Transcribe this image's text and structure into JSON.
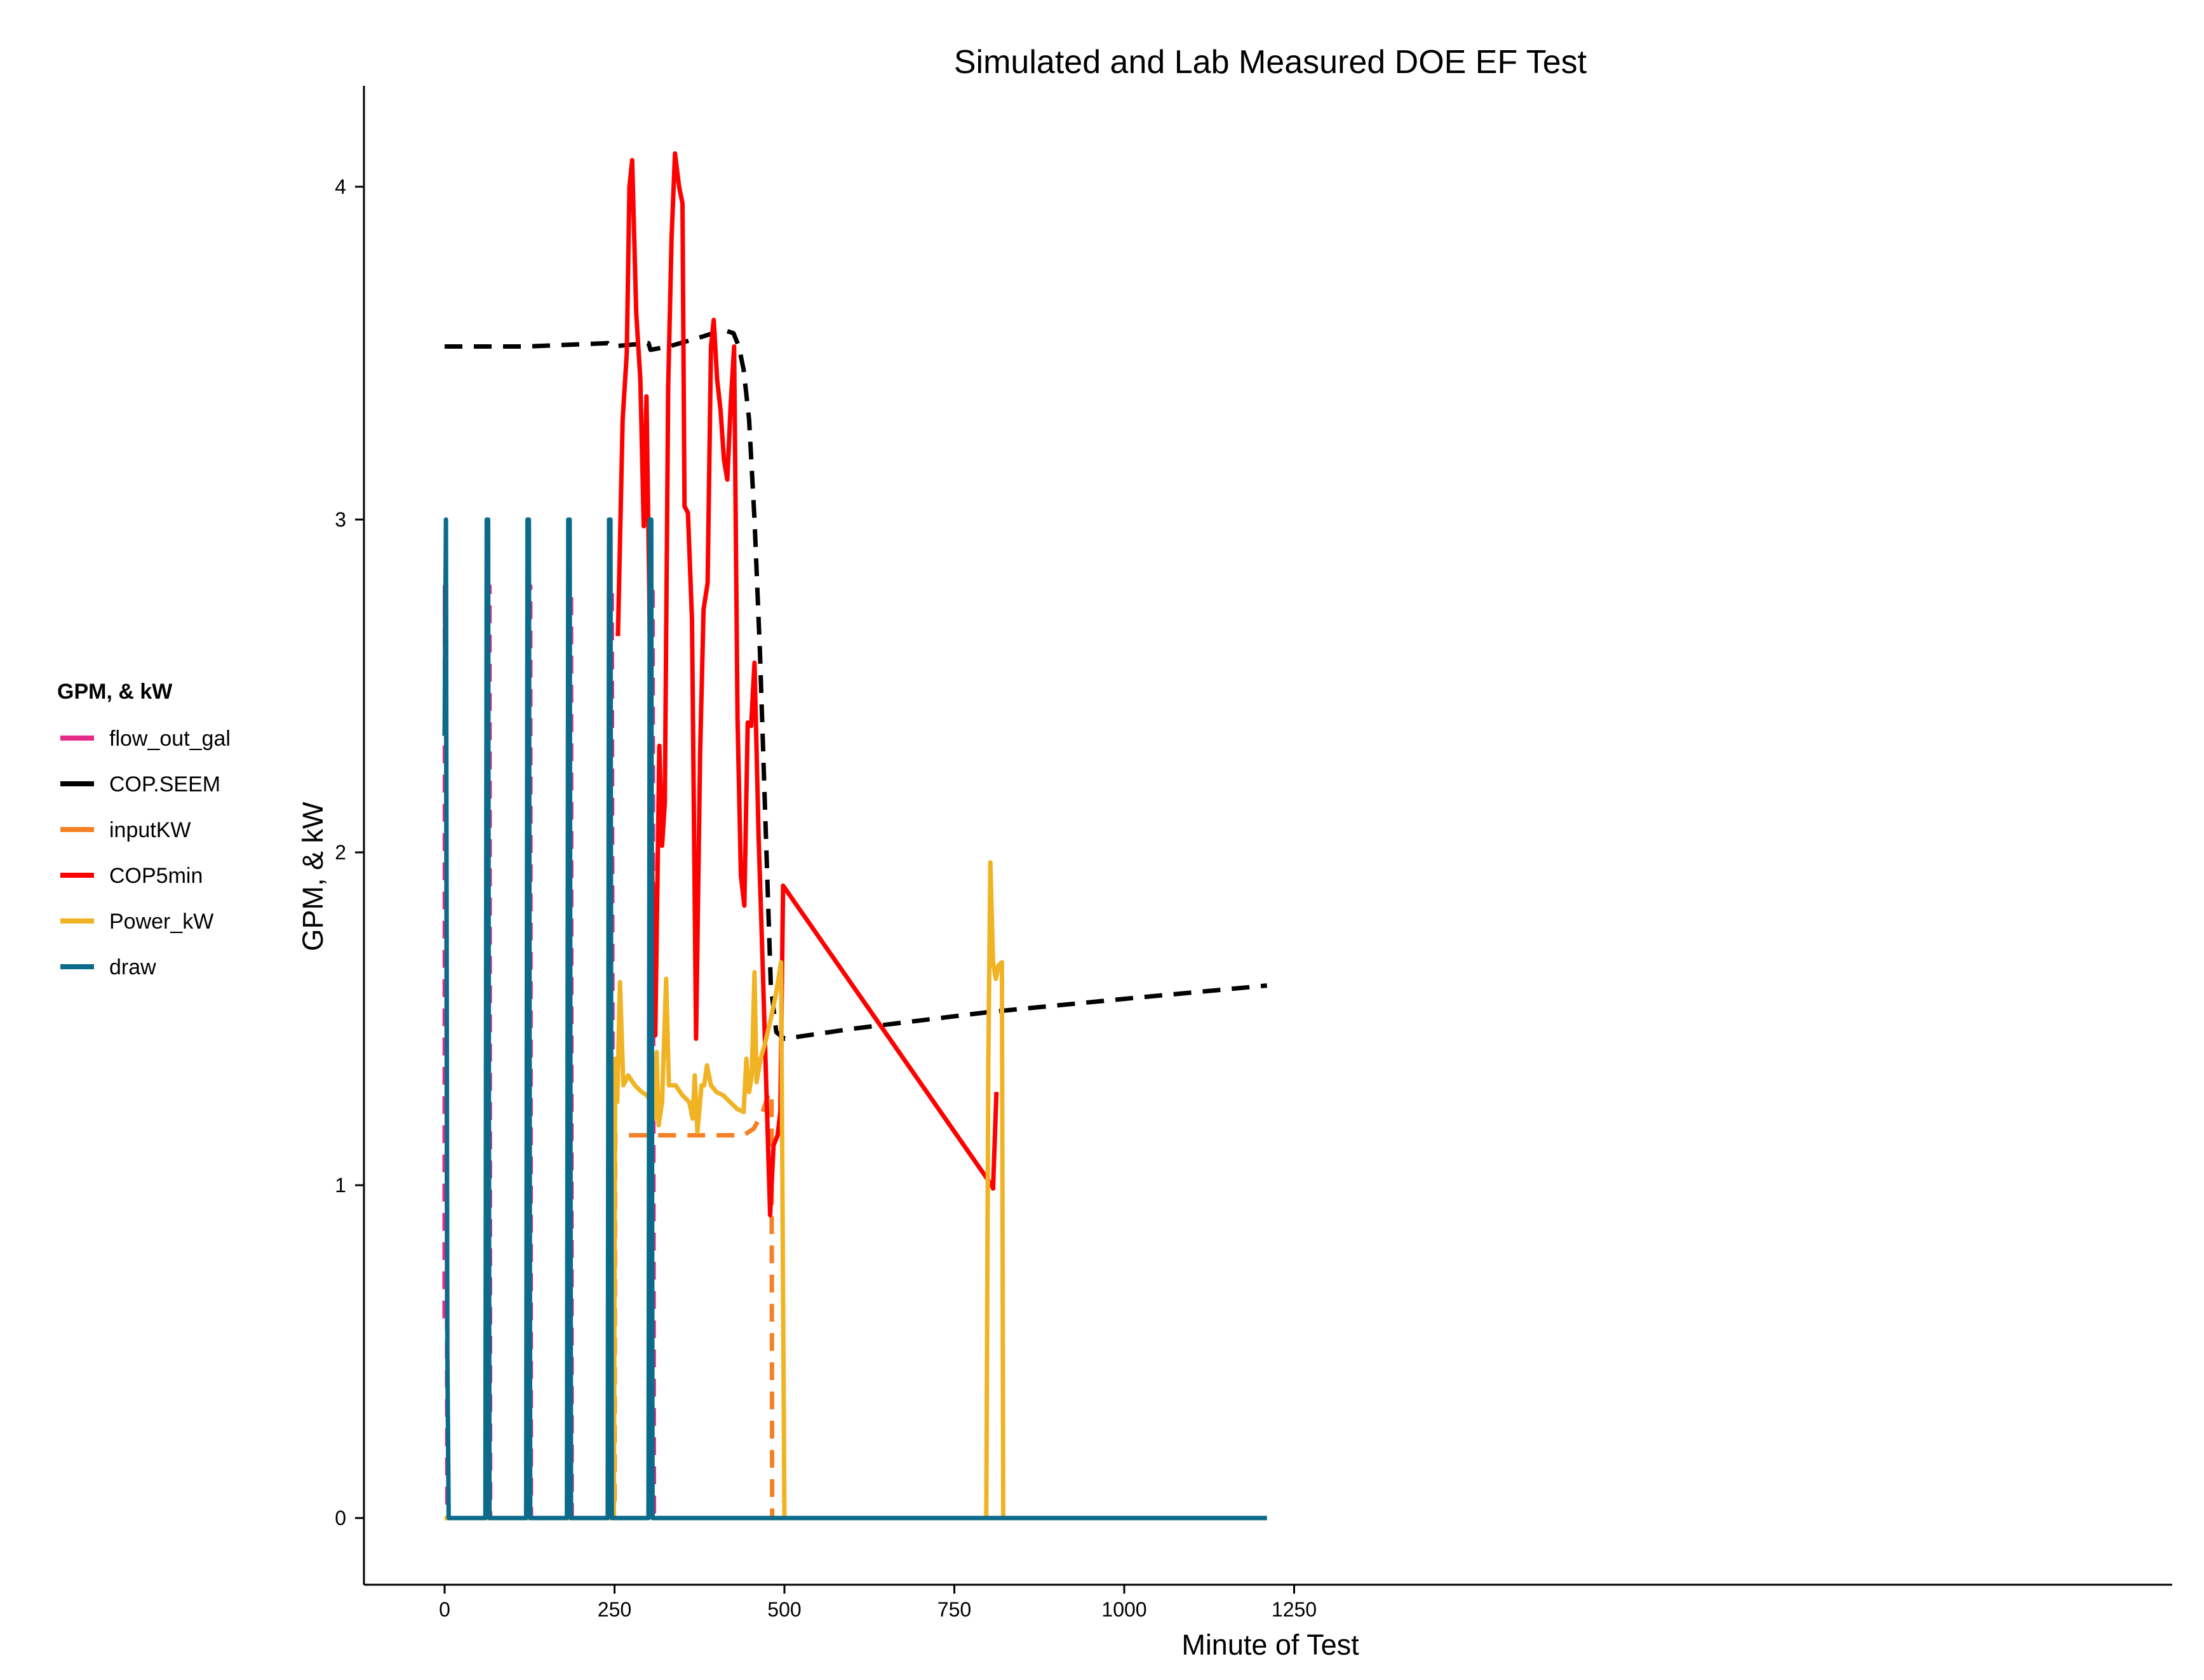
{
  "chart_data": {
    "type": "line",
    "title": "Simulated and Lab Measured DOE EF Test",
    "xlabel": "Minute of Test",
    "ylabel": "GPM, & kW",
    "xlim": [
      -120,
      1270
    ],
    "ylim": [
      -0.2,
      4.3
    ],
    "xticks": [
      0,
      250,
      500,
      750,
      1000,
      1250
    ],
    "xtick_labels": [
      "0",
      "250",
      "500",
      "750",
      "1000",
      "1250"
    ],
    "yticks": [
      0,
      1,
      2,
      3,
      4
    ],
    "ytick_labels": [
      "0",
      "1",
      "2",
      "3",
      "4"
    ],
    "grid": false,
    "legend": {
      "title": "GPM, & kW",
      "position": "left"
    },
    "series": [
      {
        "name": "flow_out_gal",
        "color": "#e7298a",
        "dashed": true,
        "points": [
          [
            0,
            0.6
          ],
          [
            0.5,
            2.8
          ],
          [
            1,
            2.4
          ],
          [
            2,
            2.8
          ],
          [
            4,
            0.05
          ],
          [
            6,
            0
          ],
          [
            62,
            0
          ],
          [
            63,
            2.8
          ],
          [
            66,
            2.8
          ],
          [
            67,
            0
          ],
          [
            122,
            0
          ],
          [
            123,
            2.8
          ],
          [
            126,
            2.8
          ],
          [
            127,
            0
          ],
          [
            182,
            0
          ],
          [
            183,
            2.8
          ],
          [
            186,
            2.8
          ],
          [
            187,
            0
          ],
          [
            242,
            0
          ],
          [
            243,
            2.8
          ],
          [
            246,
            2.8
          ],
          [
            248,
            0
          ],
          [
            302,
            0
          ],
          [
            303,
            2.8
          ],
          [
            306,
            2.8
          ],
          [
            308,
            0
          ]
        ]
      },
      {
        "name": "COP.SEEM",
        "color": "#000000",
        "dashed": true,
        "points": [
          [
            0,
            3.52
          ],
          [
            120,
            3.52
          ],
          [
            240,
            3.53
          ],
          [
            245,
            3.52
          ],
          [
            300,
            3.53
          ],
          [
            303,
            3.51
          ],
          [
            330,
            3.52
          ],
          [
            380,
            3.55
          ],
          [
            410,
            3.57
          ],
          [
            425,
            3.56
          ],
          [
            433,
            3.52
          ],
          [
            440,
            3.45
          ],
          [
            448,
            3.3
          ],
          [
            456,
            3.0
          ],
          [
            464,
            2.6
          ],
          [
            472,
            2.1
          ],
          [
            480,
            1.6
          ],
          [
            488,
            1.46
          ],
          [
            500,
            1.44
          ],
          [
            600,
            1.47
          ],
          [
            800,
            1.52
          ],
          [
            1000,
            1.56
          ],
          [
            1210,
            1.6
          ]
        ]
      },
      {
        "name": "inputKW",
        "color": "#f58025",
        "dashed": true,
        "points": [
          [
            250,
            0.05
          ],
          [
            251,
            1.15
          ],
          [
            300,
            1.15
          ],
          [
            350,
            1.15
          ],
          [
            400,
            1.15
          ],
          [
            440,
            1.15
          ],
          [
            455,
            1.17
          ],
          [
            468,
            1.22
          ],
          [
            476,
            1.27
          ],
          [
            481,
            1.28
          ],
          [
            482,
            0
          ]
        ]
      },
      {
        "name": "COP5min",
        "color": "#ff0000",
        "dashed": false,
        "points": [
          [
            255,
            2.65
          ],
          [
            262,
            3.3
          ],
          [
            268,
            3.5
          ],
          [
            272,
            4.0
          ],
          [
            276,
            4.08
          ],
          [
            282,
            3.62
          ],
          [
            288,
            3.42
          ],
          [
            293,
            2.98
          ],
          [
            297,
            3.37
          ],
          [
            301,
            2.8
          ],
          [
            305,
            2.0
          ],
          [
            310,
            1.45
          ],
          [
            316,
            2.32
          ],
          [
            320,
            2.02
          ],
          [
            324,
            2.15
          ],
          [
            329,
            3.4
          ],
          [
            334,
            3.85
          ],
          [
            339,
            4.1
          ],
          [
            345,
            4.0
          ],
          [
            350,
            3.95
          ],
          [
            353,
            3.04
          ],
          [
            358,
            3.02
          ],
          [
            364,
            2.7
          ],
          [
            370,
            1.44
          ],
          [
            376,
            2.3
          ],
          [
            381,
            2.73
          ],
          [
            387,
            2.81
          ],
          [
            392,
            3.52
          ],
          [
            396,
            3.6
          ],
          [
            401,
            3.42
          ],
          [
            406,
            3.33
          ],
          [
            411,
            3.18
          ],
          [
            416,
            3.12
          ],
          [
            421,
            3.35
          ],
          [
            426,
            3.52
          ],
          [
            431,
            2.4
          ],
          [
            436,
            1.93
          ],
          [
            441,
            1.84
          ],
          [
            446,
            2.39
          ],
          [
            451,
            2.38
          ],
          [
            456,
            2.57
          ],
          [
            462,
            2.05
          ],
          [
            467,
            1.73
          ],
          [
            474,
            1.25
          ],
          [
            479,
            0.91
          ],
          [
            484,
            1.12
          ],
          [
            490,
            1.15
          ],
          [
            494,
            1.22
          ],
          [
            498,
            1.9
          ],
          [
            805,
            1.0
          ],
          [
            807,
            0.99
          ],
          [
            812,
            1.28
          ]
        ]
      },
      {
        "name": "Power_kW",
        "color": "#f0b323",
        "dashed": false,
        "points": [
          [
            0,
            0
          ],
          [
            249,
            0
          ],
          [
            251,
            1.38
          ],
          [
            254,
            1.25
          ],
          [
            258,
            1.61
          ],
          [
            263,
            1.3
          ],
          [
            270,
            1.33
          ],
          [
            280,
            1.3
          ],
          [
            290,
            1.28
          ],
          [
            298,
            1.27
          ],
          [
            303,
            1.25
          ],
          [
            308,
            1.2
          ],
          [
            312,
            1.4
          ],
          [
            315,
            1.18
          ],
          [
            320,
            1.25
          ],
          [
            326,
            1.62
          ],
          [
            330,
            1.3
          ],
          [
            340,
            1.3
          ],
          [
            350,
            1.27
          ],
          [
            360,
            1.25
          ],
          [
            365,
            1.2
          ],
          [
            368,
            1.33
          ],
          [
            372,
            1.16
          ],
          [
            378,
            1.3
          ],
          [
            382,
            1.3
          ],
          [
            386,
            1.36
          ],
          [
            392,
            1.3
          ],
          [
            400,
            1.28
          ],
          [
            410,
            1.27
          ],
          [
            420,
            1.25
          ],
          [
            430,
            1.23
          ],
          [
            440,
            1.22
          ],
          [
            444,
            1.38
          ],
          [
            448,
            1.28
          ],
          [
            452,
            1.33
          ],
          [
            456,
            1.64
          ],
          [
            459,
            1.31
          ],
          [
            465,
            1.38
          ],
          [
            472,
            1.43
          ],
          [
            480,
            1.5
          ],
          [
            488,
            1.58
          ],
          [
            495,
            1.67
          ],
          [
            500,
            0
          ],
          [
            797,
            0
          ],
          [
            800,
            1.37
          ],
          [
            803,
            1.97
          ],
          [
            807,
            1.67
          ],
          [
            811,
            1.62
          ],
          [
            815,
            1.66
          ],
          [
            820,
            1.67
          ],
          [
            822,
            0
          ],
          [
            1210,
            0
          ]
        ]
      },
      {
        "name": "draw",
        "color": "#0c6a8a",
        "dashed": false,
        "points": [
          [
            0,
            2.35
          ],
          [
            2,
            3.0
          ],
          [
            4,
            0.5
          ],
          [
            6,
            0
          ],
          [
            60,
            0
          ],
          [
            62,
            3.0
          ],
          [
            64,
            3.0
          ],
          [
            66,
            0
          ],
          [
            120,
            0
          ],
          [
            122,
            3.0
          ],
          [
            124,
            3.0
          ],
          [
            126,
            0
          ],
          [
            180,
            0
          ],
          [
            182,
            3.0
          ],
          [
            184,
            3.0
          ],
          [
            186,
            0
          ],
          [
            240,
            0
          ],
          [
            242,
            3.0
          ],
          [
            244,
            3.0
          ],
          [
            246,
            0
          ],
          [
            300,
            0
          ],
          [
            302,
            3.0
          ],
          [
            304,
            3.0
          ],
          [
            306,
            0
          ],
          [
            1210,
            0
          ]
        ]
      }
    ]
  }
}
